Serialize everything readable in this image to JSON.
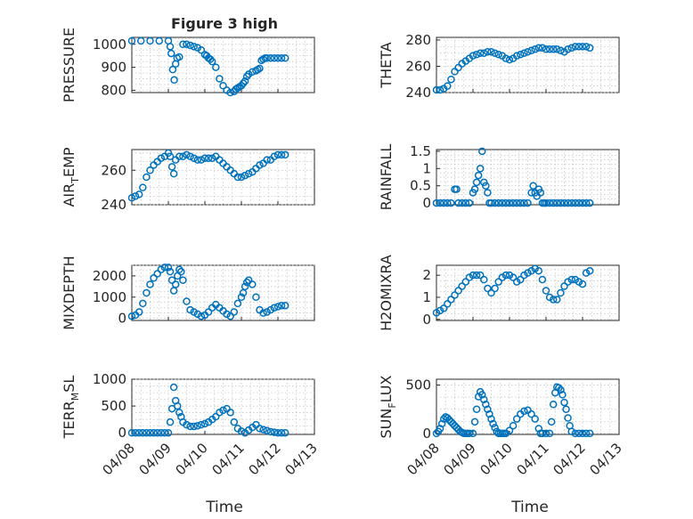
{
  "chart_data": {
    "title": "Figure 3 high",
    "type": "scatter",
    "xlabel": "Time",
    "x_ticks": [
      "04/08",
      "04/09",
      "04/10",
      "04/11",
      "04/12",
      "04/13"
    ],
    "x_range_days": [
      0,
      5
    ],
    "marker_color": "#0072bd",
    "grid": true,
    "panels": [
      {
        "ylabel": "PRESSURE",
        "ylabel_sub": "",
        "ylabel_tail": "",
        "ylim": [
          790,
          1030
        ],
        "yticks": [
          "800",
          "900",
          "1000"
        ],
        "ytick_values": [
          800,
          900,
          1000
        ],
        "x": [
          0,
          0.25,
          0.5,
          0.75,
          1.0,
          1.05,
          1.08,
          1.12,
          1.16,
          1.2,
          1.24,
          1.3,
          1.4,
          1.5,
          1.6,
          1.7,
          1.8,
          1.9,
          2.0,
          2.05,
          2.1,
          2.15,
          2.2,
          2.3,
          2.4,
          2.5,
          2.6,
          2.7,
          2.8,
          2.85,
          2.9,
          2.95,
          3.0,
          3.05,
          3.1,
          3.15,
          3.2,
          3.3,
          3.4,
          3.45,
          3.5,
          3.55,
          3.6,
          3.65,
          3.7,
          3.8,
          3.9,
          4.0,
          4.1,
          4.2
        ],
        "y": [
          1015,
          1015,
          1015,
          1015,
          1015,
          990,
          960,
          890,
          845,
          915,
          940,
          945,
          1000,
          1000,
          995,
          990,
          985,
          975,
          955,
          950,
          940,
          935,
          925,
          900,
          850,
          820,
          800,
          790,
          795,
          805,
          810,
          815,
          820,
          830,
          840,
          860,
          870,
          880,
          885,
          890,
          895,
          930,
          935,
          940,
          940,
          940,
          940,
          940,
          940,
          940
        ]
      },
      {
        "ylabel": "THETA",
        "ylabel_sub": "",
        "ylabel_tail": "",
        "ylim": [
          240,
          282
        ],
        "yticks": [
          "240",
          "260",
          "280"
        ],
        "ytick_values": [
          240,
          260,
          280
        ],
        "x": [
          0,
          0.1,
          0.2,
          0.3,
          0.4,
          0.5,
          0.6,
          0.7,
          0.8,
          0.9,
          1.0,
          1.1,
          1.2,
          1.3,
          1.4,
          1.5,
          1.6,
          1.7,
          1.8,
          1.9,
          2.0,
          2.1,
          2.2,
          2.3,
          2.4,
          2.5,
          2.6,
          2.7,
          2.8,
          2.9,
          3.0,
          3.1,
          3.2,
          3.3,
          3.4,
          3.5,
          3.6,
          3.7,
          3.8,
          3.9,
          4.0,
          4.1,
          4.2
        ],
        "y": [
          242,
          242,
          243,
          245,
          250,
          256,
          259,
          262,
          264,
          266,
          268,
          269,
          270,
          270,
          271,
          271,
          270,
          269,
          268,
          266,
          265,
          266,
          268,
          269,
          270,
          271,
          272,
          273,
          274,
          274,
          273,
          273,
          273,
          273,
          272,
          271,
          273,
          274,
          275,
          275,
          275,
          275,
          274
        ]
      },
      {
        "ylabel": "AIR",
        "ylabel_sub": "T",
        "ylabel_tail": "EMP",
        "ylim": [
          240,
          272
        ],
        "yticks": [
          "240",
          "260"
        ],
        "ytick_values": [
          240,
          260
        ],
        "x": [
          0,
          0.1,
          0.2,
          0.3,
          0.4,
          0.5,
          0.6,
          0.7,
          0.8,
          0.9,
          1.0,
          1.05,
          1.1,
          1.15,
          1.2,
          1.3,
          1.4,
          1.5,
          1.6,
          1.7,
          1.8,
          1.9,
          2.0,
          2.1,
          2.2,
          2.3,
          2.4,
          2.5,
          2.6,
          2.7,
          2.8,
          2.9,
          3.0,
          3.1,
          3.2,
          3.3,
          3.4,
          3.5,
          3.6,
          3.7,
          3.8,
          3.9,
          4.0,
          4.1,
          4.2
        ],
        "y": [
          244,
          245,
          246,
          250,
          256,
          260,
          263,
          265,
          267,
          268,
          270,
          268,
          262,
          258,
          266,
          268,
          268,
          269,
          268,
          267,
          266,
          266,
          267,
          267,
          267,
          268,
          266,
          264,
          262,
          260,
          258,
          256,
          256,
          257,
          258,
          259,
          261,
          263,
          264,
          266,
          266,
          268,
          269,
          269,
          269
        ]
      },
      {
        "ylabel": "RAINFALL",
        "ylabel_sub": "",
        "ylabel_tail": "",
        "ylim": [
          -0.05,
          1.55
        ],
        "yticks": [
          "0",
          "0.5",
          "1",
          "1.5"
        ],
        "ytick_values": [
          0,
          0.5,
          1,
          1.5
        ],
        "x": [
          0,
          0.1,
          0.2,
          0.3,
          0.4,
          0.5,
          0.55,
          0.6,
          0.7,
          0.8,
          0.9,
          1.0,
          1.05,
          1.1,
          1.15,
          1.2,
          1.25,
          1.3,
          1.35,
          1.4,
          1.45,
          1.5,
          1.6,
          1.7,
          1.8,
          1.9,
          2.0,
          2.1,
          2.2,
          2.3,
          2.4,
          2.5,
          2.6,
          2.65,
          2.7,
          2.75,
          2.8,
          2.85,
          2.9,
          2.95,
          3.0,
          3.1,
          3.2,
          3.3,
          3.4,
          3.5,
          3.6,
          3.7,
          3.8,
          3.9,
          4.0,
          4.1,
          4.2
        ],
        "y": [
          0,
          0,
          0,
          0,
          0,
          0.4,
          0.4,
          0,
          0,
          0,
          0,
          0.3,
          0.4,
          0.6,
          0.8,
          1.0,
          1.5,
          0.6,
          0.5,
          0.3,
          0,
          0,
          0,
          0,
          0,
          0,
          0,
          0,
          0,
          0,
          0,
          0,
          0.3,
          0.5,
          0.3,
          0.2,
          0.4,
          0.3,
          0,
          0,
          0,
          0,
          0,
          0,
          0,
          0,
          0,
          0,
          0,
          0,
          0,
          0,
          0
        ]
      },
      {
        "ylabel": "MIXDEPTH",
        "ylabel_sub": "",
        "ylabel_tail": "",
        "ylim": [
          -100,
          2500
        ],
        "yticks": [
          "0",
          "1000",
          "2000"
        ],
        "ytick_values": [
          0,
          1000,
          2000
        ],
        "x": [
          0,
          0.1,
          0.2,
          0.3,
          0.4,
          0.5,
          0.6,
          0.7,
          0.8,
          0.9,
          1.0,
          1.05,
          1.1,
          1.15,
          1.2,
          1.25,
          1.3,
          1.35,
          1.4,
          1.5,
          1.6,
          1.7,
          1.8,
          1.9,
          2.0,
          2.1,
          2.2,
          2.3,
          2.4,
          2.5,
          2.6,
          2.7,
          2.8,
          2.9,
          3.0,
          3.05,
          3.1,
          3.15,
          3.2,
          3.3,
          3.4,
          3.5,
          3.6,
          3.7,
          3.8,
          3.9,
          4.0,
          4.1,
          4.2
        ],
        "y": [
          100,
          150,
          300,
          700,
          1200,
          1600,
          1900,
          2100,
          2300,
          2400,
          2400,
          2200,
          1800,
          1300,
          1600,
          2000,
          2300,
          2200,
          1800,
          800,
          400,
          300,
          200,
          100,
          150,
          300,
          500,
          650,
          500,
          350,
          200,
          100,
          300,
          700,
          1000,
          1200,
          1500,
          1700,
          1800,
          1600,
          1000,
          400,
          250,
          300,
          400,
          500,
          550,
          600,
          600
        ]
      },
      {
        "ylabel": "H2OMIXRA",
        "ylabel_sub": "",
        "ylabel_tail": "",
        "ylim": [
          -0.05,
          2.45
        ],
        "yticks": [
          "0",
          "1",
          "2"
        ],
        "ytick_values": [
          0,
          1,
          2
        ],
        "x": [
          0,
          0.1,
          0.2,
          0.3,
          0.4,
          0.5,
          0.6,
          0.7,
          0.8,
          0.9,
          1.0,
          1.1,
          1.2,
          1.3,
          1.4,
          1.5,
          1.6,
          1.7,
          1.8,
          1.9,
          2.0,
          2.1,
          2.2,
          2.3,
          2.4,
          2.5,
          2.6,
          2.7,
          2.8,
          2.9,
          3.0,
          3.1,
          3.2,
          3.3,
          3.4,
          3.5,
          3.6,
          3.7,
          3.8,
          3.9,
          4.0,
          4.1,
          4.2
        ],
        "y": [
          0.3,
          0.4,
          0.5,
          0.7,
          0.9,
          1.1,
          1.3,
          1.5,
          1.7,
          1.9,
          2.0,
          2.0,
          2.0,
          1.8,
          1.4,
          1.2,
          1.4,
          1.7,
          1.9,
          2.0,
          2.0,
          1.9,
          1.7,
          1.8,
          2.0,
          2.1,
          2.2,
          2.3,
          2.2,
          1.8,
          1.3,
          1.0,
          0.9,
          0.9,
          1.2,
          1.5,
          1.7,
          1.8,
          1.8,
          1.7,
          1.6,
          2.1,
          2.2
        ]
      },
      {
        "ylabel": "TERR",
        "ylabel_sub": "M",
        "ylabel_tail": "SL",
        "ylim": [
          -30,
          1000
        ],
        "yticks": [
          "0",
          "500",
          "1000"
        ],
        "ytick_values": [
          0,
          500,
          1000
        ],
        "x": [
          0,
          0.1,
          0.2,
          0.3,
          0.4,
          0.5,
          0.6,
          0.7,
          0.8,
          0.9,
          1.0,
          1.05,
          1.1,
          1.15,
          1.2,
          1.25,
          1.3,
          1.35,
          1.4,
          1.5,
          1.6,
          1.7,
          1.8,
          1.9,
          2.0,
          2.1,
          2.2,
          2.3,
          2.4,
          2.5,
          2.6,
          2.7,
          2.8,
          2.9,
          3.0,
          3.1,
          3.2,
          3.3,
          3.4,
          3.5,
          3.6,
          3.7,
          3.8,
          3.9,
          4.0,
          4.1,
          4.2
        ],
        "y": [
          0,
          0,
          0,
          0,
          0,
          0,
          0,
          0,
          0,
          0,
          0,
          200,
          450,
          850,
          600,
          500,
          380,
          300,
          200,
          150,
          120,
          120,
          130,
          150,
          170,
          200,
          250,
          300,
          380,
          420,
          450,
          380,
          200,
          80,
          30,
          0,
          50,
          100,
          150,
          80,
          60,
          40,
          20,
          10,
          0,
          0,
          0
        ]
      },
      {
        "ylabel": "SUN",
        "ylabel_sub": "F",
        "ylabel_tail": "LUX",
        "ylim": [
          -10,
          560
        ],
        "yticks": [
          "0",
          "500"
        ],
        "ytick_values": [
          0,
          500
        ],
        "x": [
          0,
          0.05,
          0.1,
          0.15,
          0.2,
          0.25,
          0.3,
          0.35,
          0.4,
          0.45,
          0.5,
          0.55,
          0.6,
          0.65,
          0.7,
          0.75,
          0.8,
          0.85,
          0.9,
          1.0,
          1.05,
          1.1,
          1.15,
          1.2,
          1.25,
          1.3,
          1.35,
          1.4,
          1.45,
          1.5,
          1.55,
          1.6,
          1.65,
          1.7,
          1.75,
          1.8,
          1.85,
          1.9,
          2.0,
          2.1,
          2.2,
          2.3,
          2.4,
          2.5,
          2.6,
          2.7,
          2.8,
          2.85,
          2.9,
          3.0,
          3.1,
          3.15,
          3.2,
          3.25,
          3.3,
          3.35,
          3.4,
          3.45,
          3.5,
          3.55,
          3.6,
          3.65,
          3.7,
          3.8,
          3.9,
          4.0,
          4.1,
          4.2
        ],
        "y": [
          0,
          20,
          50,
          100,
          150,
          170,
          160,
          140,
          120,
          100,
          80,
          60,
          40,
          20,
          10,
          0,
          0,
          0,
          0,
          0,
          120,
          250,
          380,
          430,
          400,
          350,
          300,
          250,
          200,
          150,
          100,
          60,
          20,
          0,
          0,
          0,
          0,
          0,
          30,
          80,
          150,
          200,
          230,
          240,
          200,
          150,
          50,
          0,
          0,
          0,
          0,
          120,
          300,
          420,
          480,
          470,
          450,
          400,
          320,
          250,
          160,
          80,
          20,
          0,
          0,
          0,
          0,
          0
        ]
      }
    ]
  }
}
